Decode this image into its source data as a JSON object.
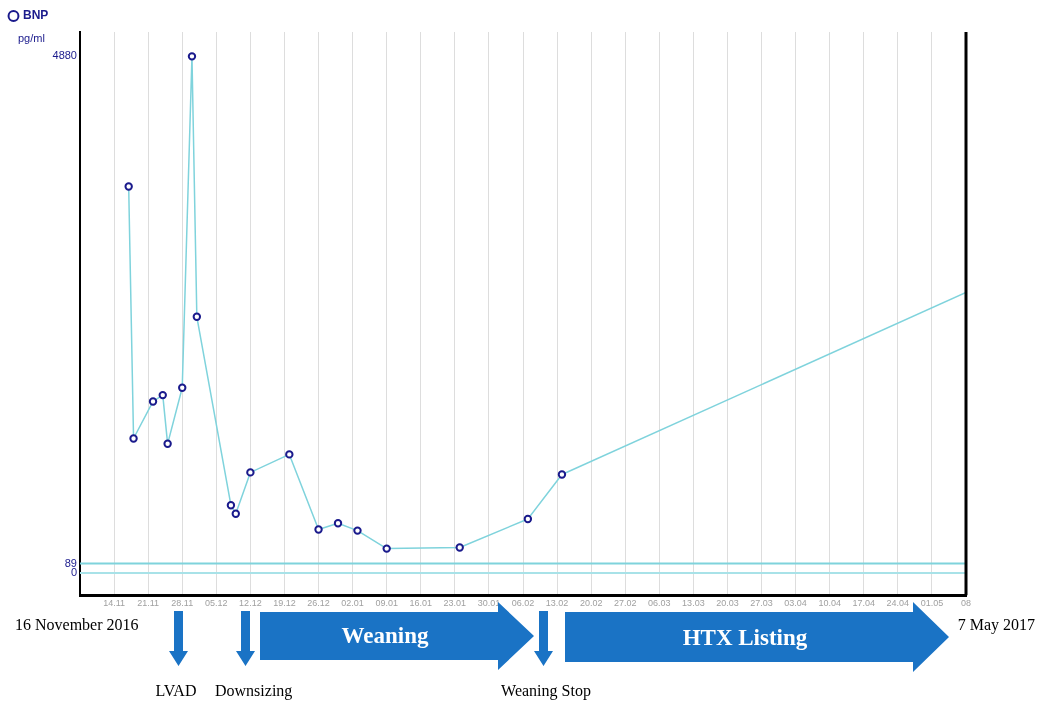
{
  "chart_data": {
    "type": "line",
    "ylabel": "pg/ml",
    "legend": "top left",
    "marker": "circle",
    "grid": "x",
    "xlim": [
      "2016-11-07",
      "2017-05-08"
    ],
    "xticks": [
      {
        "value": "2016-11-14",
        "label": "14.11"
      },
      {
        "value": "2016-11-21",
        "label": "21.11"
      },
      {
        "value": "2016-11-28",
        "label": "28.11"
      },
      {
        "value": "2016-12-05",
        "label": "05.12"
      },
      {
        "value": "2016-12-12",
        "label": "12.12"
      },
      {
        "value": "2016-12-19",
        "label": "19.12"
      },
      {
        "value": "2016-12-26",
        "label": "26.12"
      },
      {
        "value": "2017-01-02",
        "label": "02.01"
      },
      {
        "value": "2017-01-09",
        "label": "09.01"
      },
      {
        "value": "2017-01-16",
        "label": "16.01"
      },
      {
        "value": "2017-01-23",
        "label": "23.01"
      },
      {
        "value": "2017-01-30",
        "label": "30.01"
      },
      {
        "value": "2017-02-06",
        "label": "06.02"
      },
      {
        "value": "2017-02-13",
        "label": "13.02"
      },
      {
        "value": "2017-02-20",
        "label": "20.02"
      },
      {
        "value": "2017-02-27",
        "label": "27.02"
      },
      {
        "value": "2017-03-06",
        "label": "06.03"
      },
      {
        "value": "2017-03-13",
        "label": "13.03"
      },
      {
        "value": "2017-03-20",
        "label": "20.03"
      },
      {
        "value": "2017-03-27",
        "label": "27.03"
      },
      {
        "value": "2017-04-03",
        "label": "03.04"
      },
      {
        "value": "2017-04-10",
        "label": "10.04"
      },
      {
        "value": "2017-04-17",
        "label": "17.04"
      },
      {
        "value": "2017-04-24",
        "label": "24.04"
      },
      {
        "value": "2017-05-01",
        "label": "01.05"
      },
      {
        "value": "2017-05-08",
        "label": "08"
      }
    ],
    "ylim": [
      -210,
      5110
    ],
    "yticks": [
      0,
      89,
      4880
    ],
    "series": [
      {
        "name": "BNP",
        "color": "#7fd3dc",
        "colors": [
          "#1a1a8c",
          "#1a1a8c",
          "#1a1a8c",
          "#1a1a8c",
          "#1a1a8c",
          "#1a1a8c",
          "#1a1a8c",
          "#1a1a8c",
          "#1a1a8c",
          "#1a1a8c",
          "#1a1a8c",
          "#1a1a8c",
          "#1a1a8c",
          "#1a1a8c",
          "#1a1a8c",
          "#1a1a8c",
          "#1a1a8c",
          "#1a1a8c",
          "#1a1a8c"
        ],
        "x": [
          "2016-11-17",
          "2016-11-18",
          "2016-11-22",
          "2016-11-24",
          "2016-11-25",
          "2016-11-28",
          "2016-11-30",
          "2016-12-01",
          "2016-12-08",
          "2016-12-09",
          "2016-12-12",
          "2016-12-20",
          "2016-12-26",
          "2016-12-30",
          "2017-01-03",
          "2017-01-09",
          "2017-01-24",
          "2017-02-07",
          "2017-02-14"
        ],
        "values": [
          3650,
          1270,
          1620,
          1680,
          1220,
          1750,
          4880,
          2420,
          640,
          560,
          950,
          1120,
          410,
          470,
          400,
          230,
          240,
          510,
          930
        ]
      },
      {
        "type": "line",
        "marker": "none",
        "color": "#7fd3dc",
        "x": [
          "2017-02-14",
          "2017-05-08"
        ],
        "values": [
          930,
          2650
        ]
      }
    ],
    "ref_lines": [
      {
        "axis": "y",
        "value": 89,
        "color": "#7fd3dc"
      },
      {
        "axis": "y",
        "value": 0,
        "color": "#a8e2e8"
      }
    ],
    "annotations": [
      "16 November 2016",
      "Weaning",
      "HTX Listing",
      "7 May 2017",
      "LVAD",
      "Downsizing",
      "Weaning Stop"
    ]
  }
}
